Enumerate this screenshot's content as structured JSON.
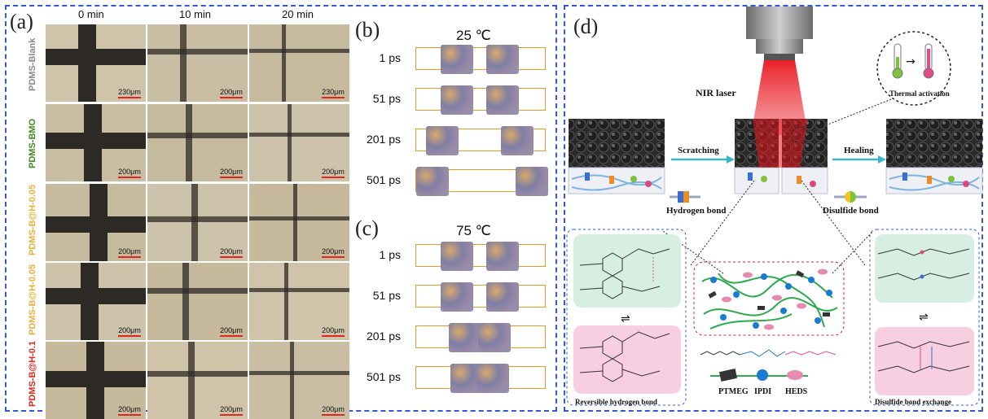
{
  "panel_a": {
    "label": "(a)",
    "columns": [
      "0 min",
      "10 min",
      "20 min"
    ],
    "rows": [
      {
        "name": "PDMS-Blank",
        "color": "#8a8a8a"
      },
      {
        "name": "PDMS-BMO",
        "color": "#3f8a1f"
      },
      {
        "name": "PDMS-B@H-0.05",
        "color": "#e8b23a"
      },
      {
        "name": "PDMS-B@H-0.05",
        "color": "#e8b23a"
      },
      {
        "name": "PDMS-B@H-0.1",
        "color": "#e0261d"
      }
    ],
    "scale_labels": [
      [
        "230μm",
        "200μm",
        "230μm"
      ],
      [
        "200μm",
        "200μm",
        "200μm"
      ],
      [
        "200μm",
        "200μm",
        "200μm"
      ],
      [
        "200μm",
        "200μm",
        "200μm"
      ],
      [
        "200μm",
        "200μm",
        "200μm"
      ]
    ]
  },
  "panel_b": {
    "label": "(b)",
    "temperature": "25 ℃",
    "times": [
      "1 ps",
      "51 ps",
      "201 ps",
      "501 ps"
    ]
  },
  "panel_c": {
    "label": "(c)",
    "temperature": "75 ℃",
    "times": [
      "1 ps",
      "51 ps",
      "201 ps",
      "501 ps"
    ]
  },
  "panel_d": {
    "label": "(d)",
    "nir_laser": "NIR laser",
    "thermal_activation": "Thermal activation",
    "scratching": "Scratching",
    "healing": "Healing",
    "hydrogen_bond": "Hydrogen bond",
    "disulfide_bond": "Disulfide bond",
    "legend": [
      "PTMEG",
      "IPDI",
      "HEDS"
    ],
    "reversible_hydrogen_bond": "Reversible hydrogen bond",
    "disulfide_bond_exchange": "Disulfide bond exchange"
  }
}
